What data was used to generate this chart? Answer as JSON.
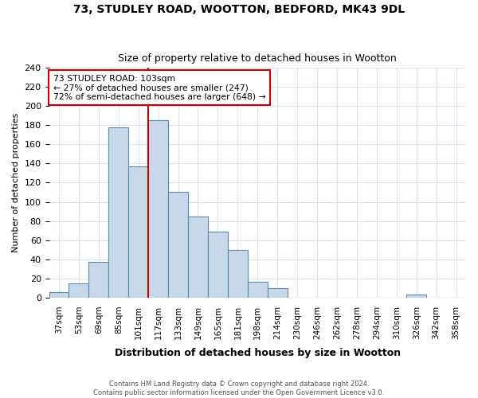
{
  "title1": "73, STUDLEY ROAD, WOOTTON, BEDFORD, MK43 9DL",
  "title2": "Size of property relative to detached houses in Wootton",
  "xlabel": "Distribution of detached houses by size in Wootton",
  "ylabel": "Number of detached properties",
  "footnote1": "Contains HM Land Registry data © Crown copyright and database right 2024.",
  "footnote2": "Contains public sector information licensed under the Open Government Licence v3.0.",
  "categories": [
    "37sqm",
    "53sqm",
    "69sqm",
    "85sqm",
    "101sqm",
    "117sqm",
    "133sqm",
    "149sqm",
    "165sqm",
    "181sqm",
    "198sqm",
    "214sqm",
    "230sqm",
    "246sqm",
    "262sqm",
    "278sqm",
    "294sqm",
    "310sqm",
    "326sqm",
    "342sqm",
    "358sqm"
  ],
  "values": [
    6,
    15,
    37,
    178,
    137,
    185,
    110,
    85,
    69,
    50,
    17,
    10,
    0,
    0,
    0,
    0,
    0,
    0,
    3,
    0,
    0
  ],
  "bar_color": "#c8d8e8",
  "bar_edge_color": "#5a8ab0",
  "ylim": [
    0,
    240
  ],
  "yticks": [
    0,
    20,
    40,
    60,
    80,
    100,
    120,
    140,
    160,
    180,
    200,
    220,
    240
  ],
  "vline_x": 4.5,
  "vline_color": "#cc0000",
  "annotation_title": "73 STUDLEY ROAD: 103sqm",
  "annotation_line1": "← 27% of detached houses are smaller (247)",
  "annotation_line2": "72% of semi-detached houses are larger (648) →",
  "annotation_box_color": "#ffffff",
  "annotation_box_edge": "#cc0000",
  "background_color": "#ffffff",
  "grid_color": "#d8e4f0"
}
